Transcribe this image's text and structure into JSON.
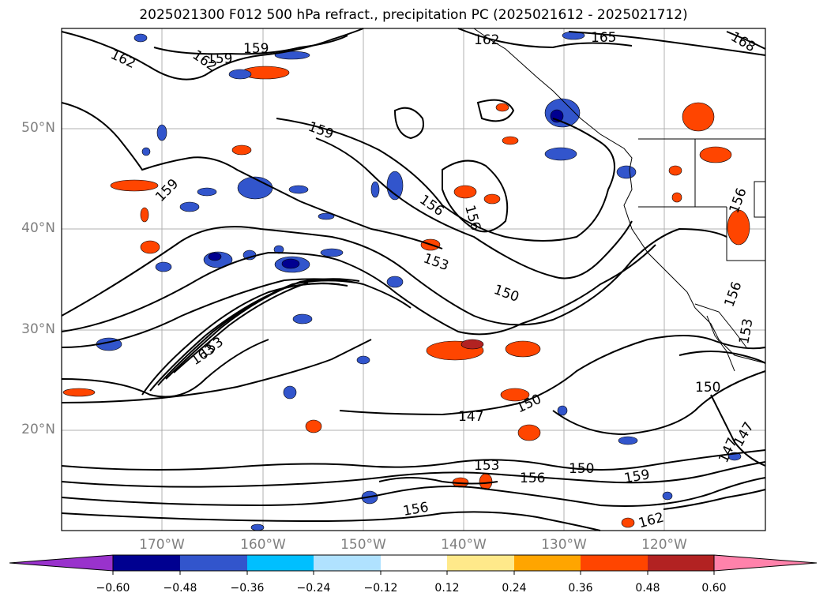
{
  "title": "2025021300 F012 500 hPa refract., precipitation PC (2025021612 - 2025021712)",
  "lat_labels": [
    "50°N",
    "40°N",
    "30°N",
    "20°N"
  ],
  "lon_labels": [
    "170°W",
    "160°W",
    "150°W",
    "140°W",
    "130°W",
    "120°W"
  ],
  "contour_labels": [
    "162",
    "162",
    "159",
    "159",
    "162",
    "165",
    "168",
    "159",
    "159",
    "156",
    "156",
    "153",
    "150",
    "153",
    "163",
    "150",
    "147",
    "150",
    "153",
    "156",
    "150",
    "159",
    "156",
    "162",
    "156",
    "156",
    "153",
    "147",
    "147"
  ],
  "colorbar": {
    "ticks": [
      "−0.60",
      "−0.48",
      "−0.36",
      "−0.24",
      "−0.12",
      "0.12",
      "0.24",
      "0.36",
      "0.48",
      "0.60"
    ],
    "colors": [
      "#9932cc",
      "#000090",
      "#3255cc",
      "#00bfff",
      "#b0e2ff",
      "#ffffff",
      "#ffe98a",
      "#ffa500",
      "#ff4500",
      "#b22222",
      "#ff82ab"
    ]
  },
  "colors": {
    "grid": "#b0b0b0",
    "contour": "#000000",
    "label_gray": "#7f7f7f"
  }
}
